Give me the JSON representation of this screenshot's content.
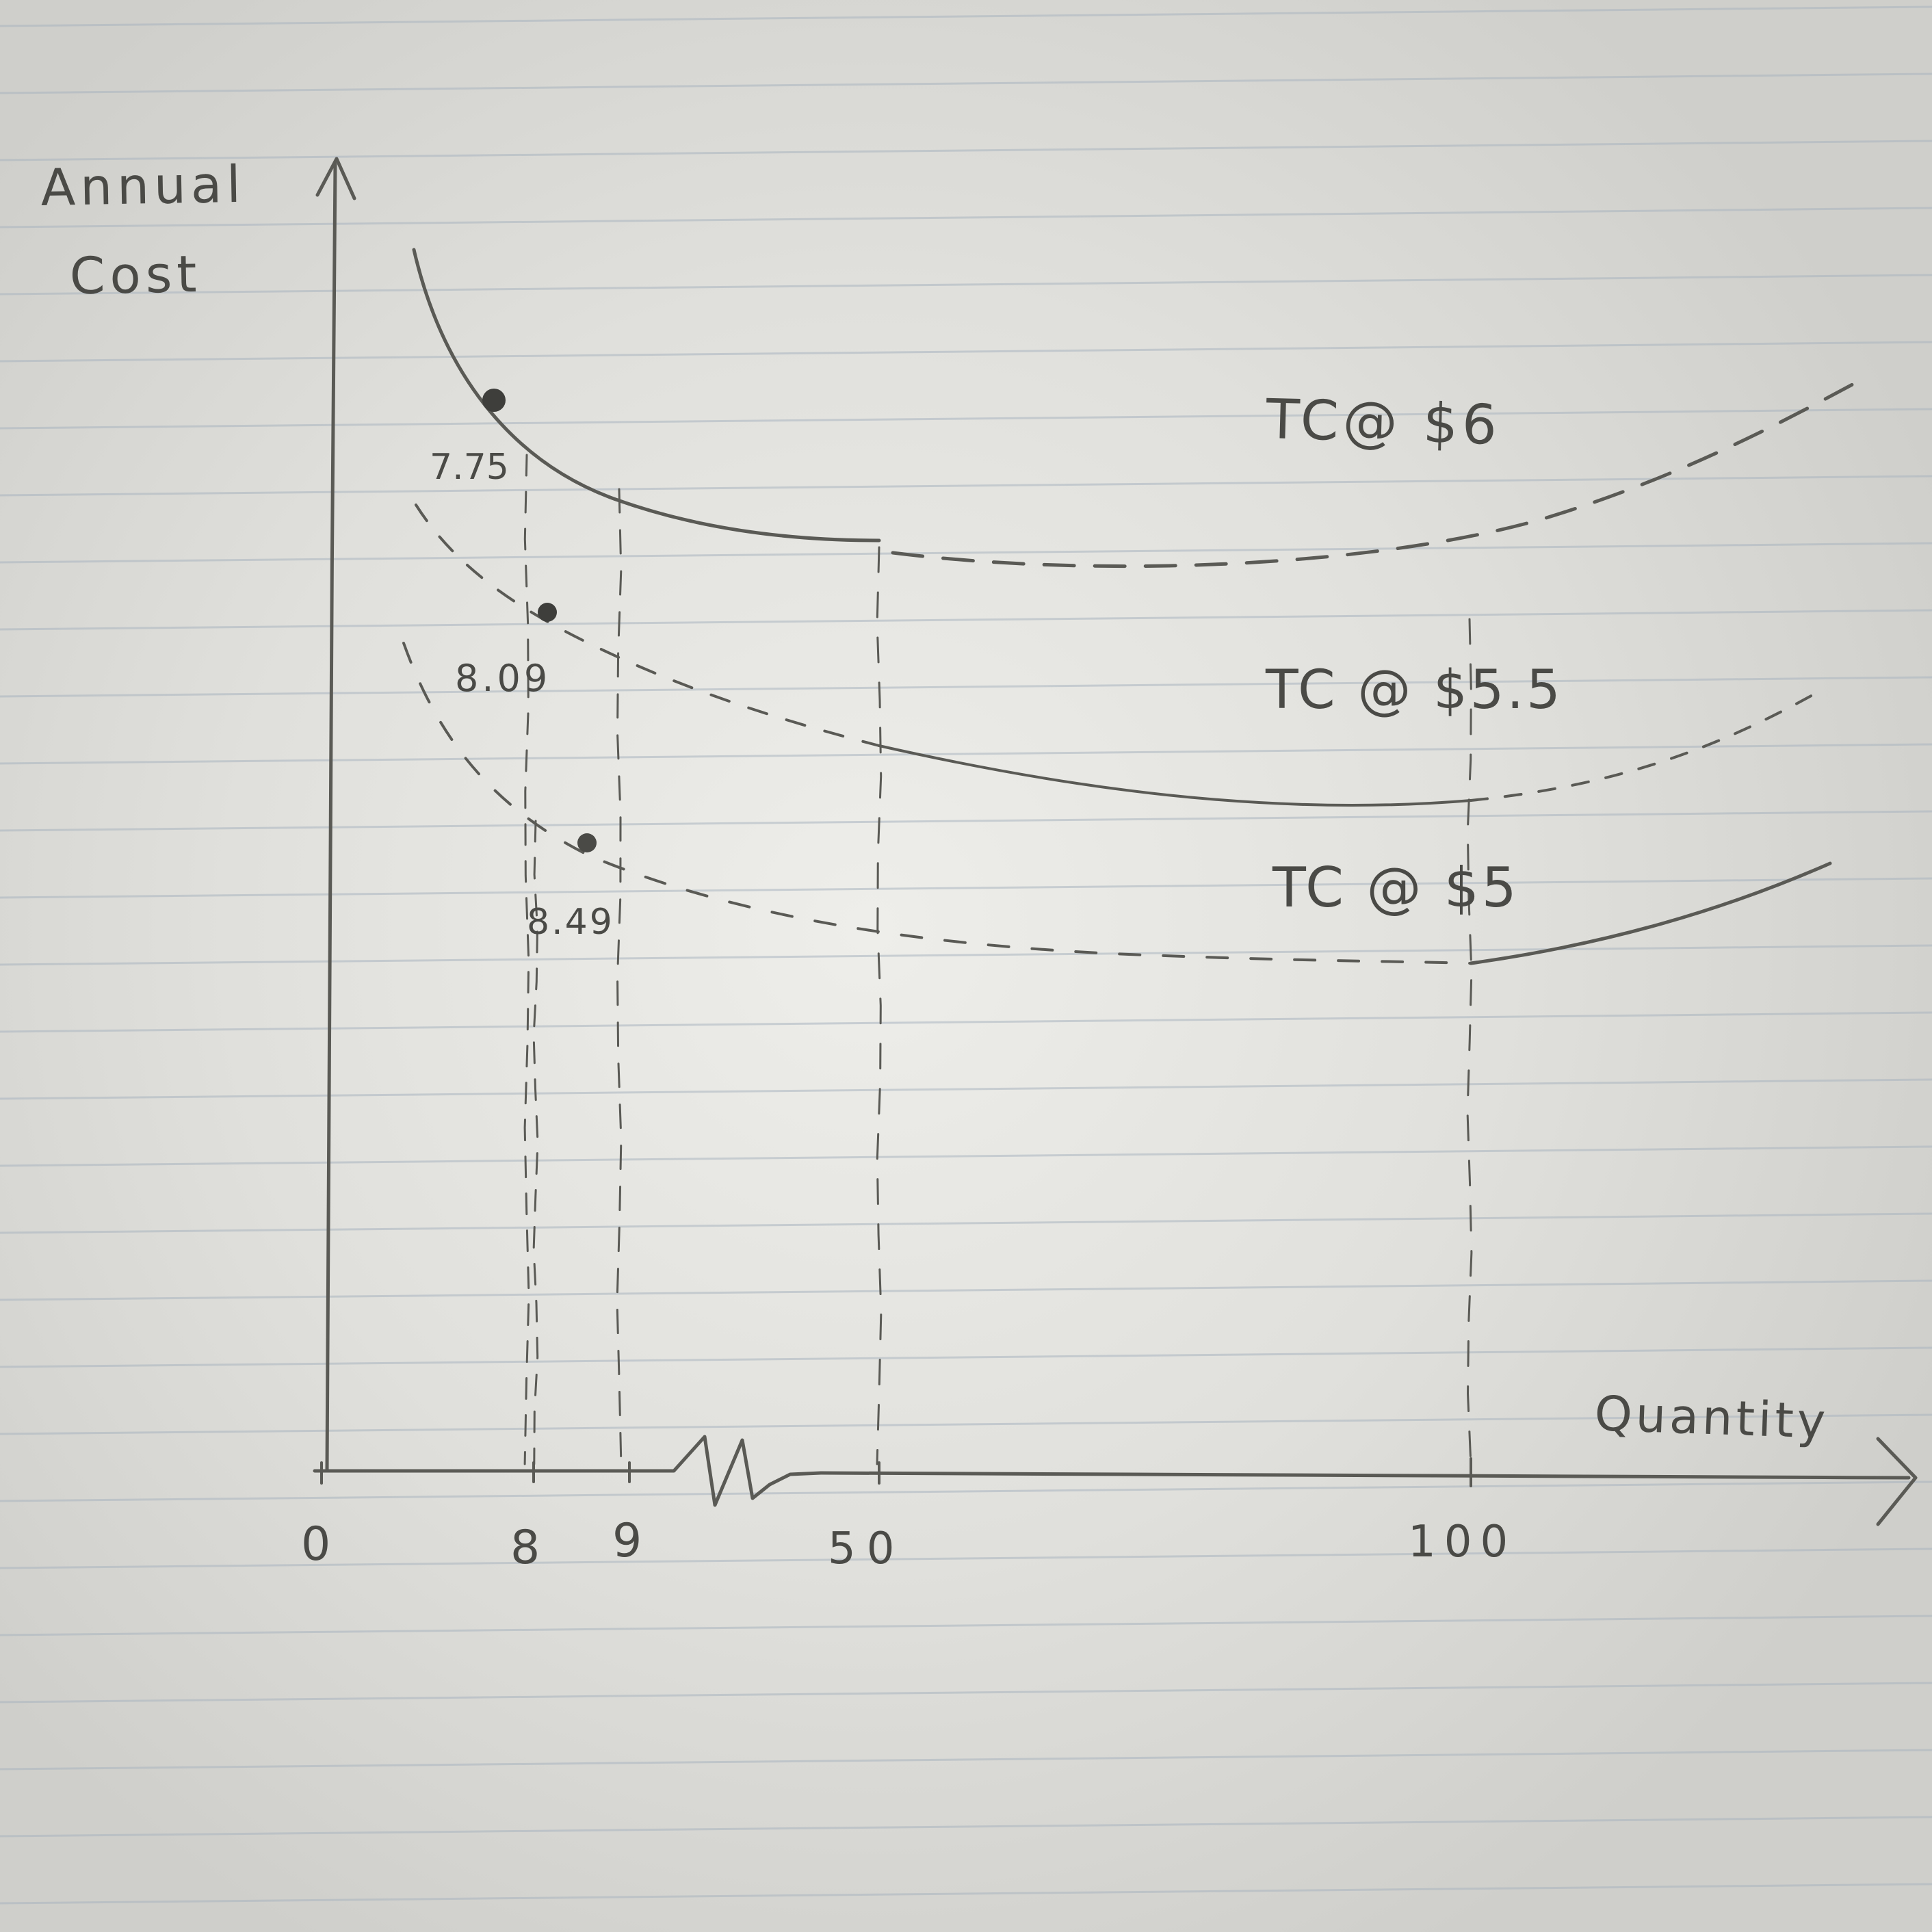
{
  "chart_data": {
    "type": "line",
    "title": "",
    "xlabel": "Quantity",
    "ylabel": "Annual Cost",
    "x_ticks": [
      "0",
      "8",
      "9",
      "50",
      "100"
    ],
    "axis_break_between": [
      "9",
      "50"
    ],
    "series": [
      {
        "name": "TC@ $6",
        "solid_range": [
          "0",
          "50"
        ],
        "dashed_range": [
          "50",
          "max"
        ],
        "marker_label": "7.75"
      },
      {
        "name": "TC @ $5.5",
        "solid_range": [
          "50",
          "100"
        ],
        "dashed_range": [
          "0",
          "50"
        ],
        "marker_label": "8.09"
      },
      {
        "name": "TC @ $5",
        "solid_range": [
          "100",
          "max"
        ],
        "dashed_range": [
          "0",
          "100"
        ],
        "marker_label": "8.49"
      }
    ],
    "reference_lines_x": [
      "7.75",
      "8.49",
      "9",
      "50",
      "100"
    ],
    "grid": false,
    "background": "lined notebook paper",
    "pencil_color": "#5a5a55"
  }
}
